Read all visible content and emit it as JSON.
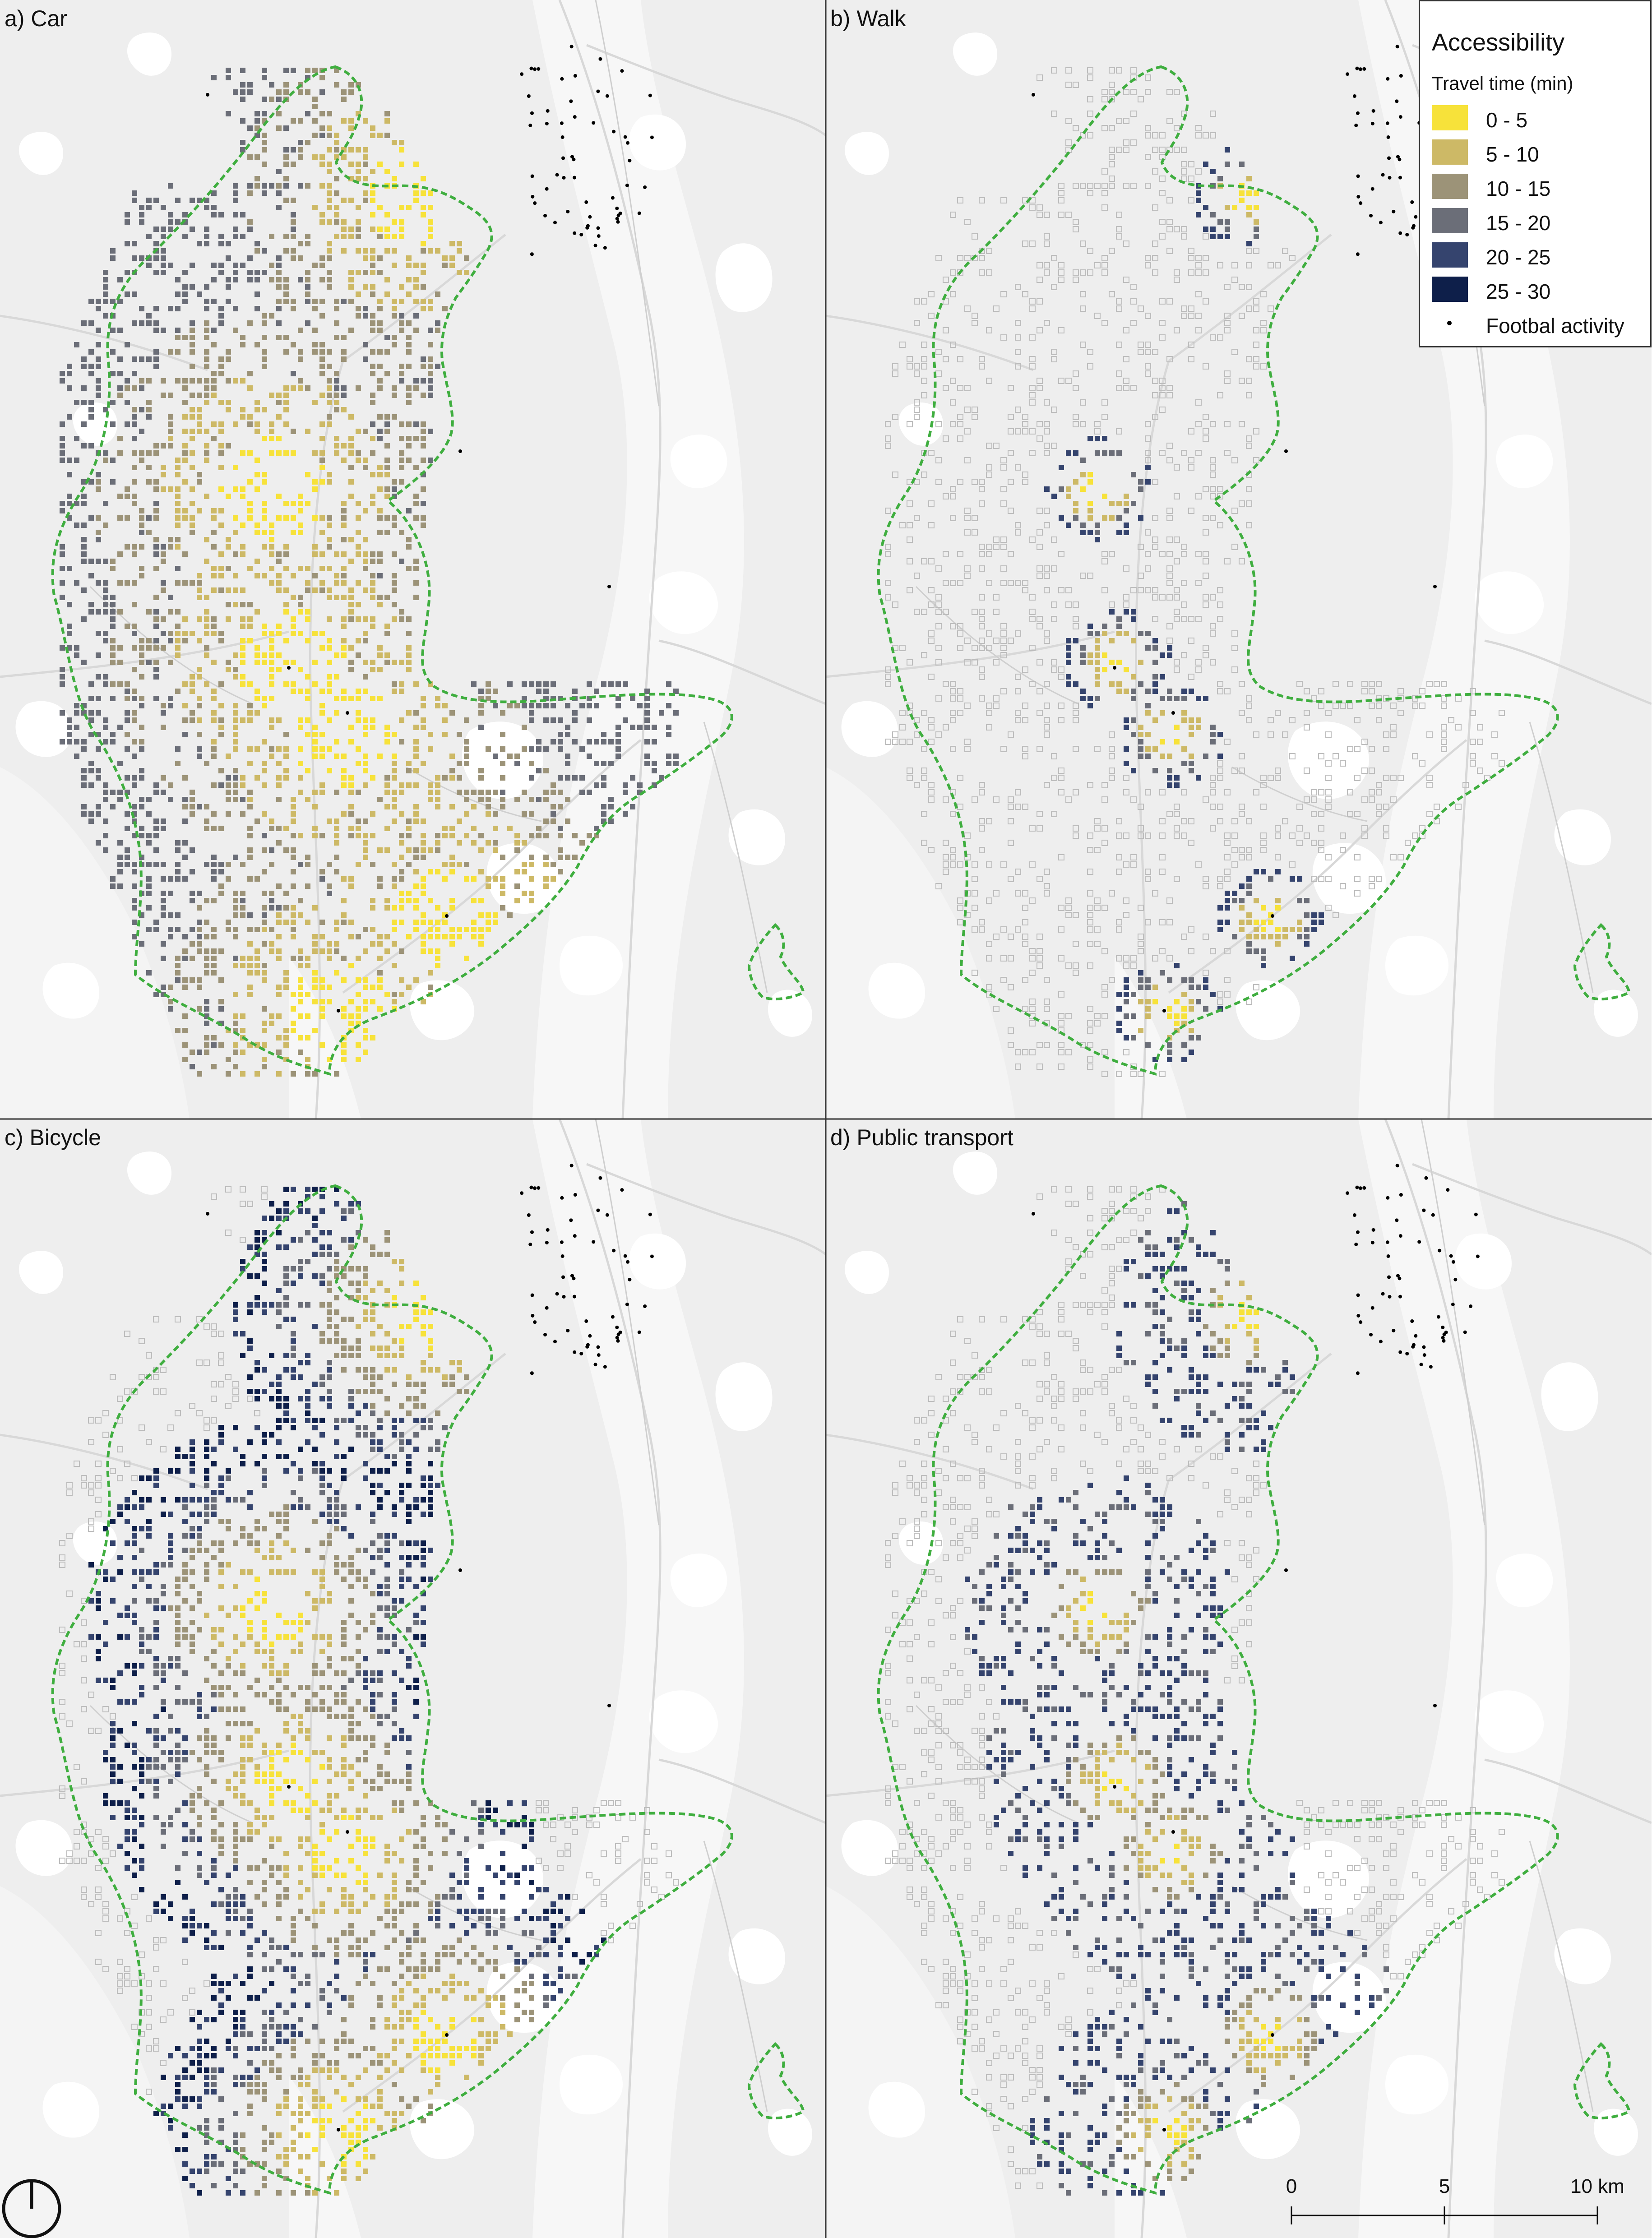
{
  "panels": [
    {
      "id": "car",
      "title": "a) Car",
      "mode": "car"
    },
    {
      "id": "walk",
      "title": "b) Walk",
      "mode": "walk"
    },
    {
      "id": "bicycle",
      "title": "c) Bicycle",
      "mode": "bicycle"
    },
    {
      "id": "pt",
      "title": "d) Public transport",
      "mode": "pt"
    }
  ],
  "legend": {
    "title": "Accessibility",
    "subtitle": "Travel time (min)",
    "classes": [
      {
        "label": "0 - 5",
        "color": "#f7e23a"
      },
      {
        "label": "5 - 10",
        "color": "#cdb966"
      },
      {
        "label": "10 - 15",
        "color": "#9c9378"
      },
      {
        "label": "15 - 20",
        "color": "#6b6e78"
      },
      {
        "label": "20 - 25",
        "color": "#35446e"
      },
      {
        "label": "25 - 30",
        "color": "#0e1f4a"
      }
    ],
    "point_label": "Footbal activity"
  },
  "scale_bar": {
    "labels": [
      "0",
      "5",
      "10 km"
    ]
  },
  "colors": {
    "boundary": "#3fae3f",
    "land": "#eeeeee",
    "water": "#ffffff",
    "road": "#d6d6d6",
    "panel_border": "#333333",
    "no_access": "#bdbdbd"
  },
  "icons": {
    "north_arrow": "north-arrow-icon"
  }
}
